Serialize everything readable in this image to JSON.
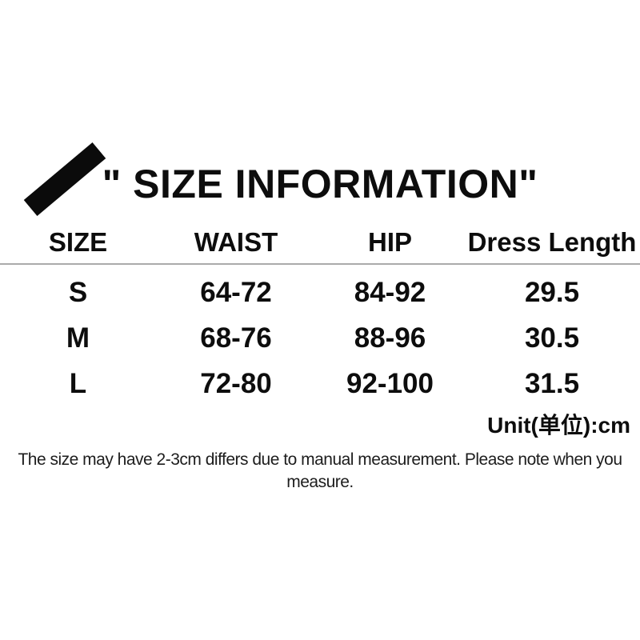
{
  "chart_data": {
    "type": "table",
    "title": "\" SIZE INFORMATION\"",
    "columns": [
      "SIZE",
      "WAIST",
      "HIP",
      "Dress Length"
    ],
    "rows": [
      [
        "S",
        "64-72",
        "84-92",
        "29.5"
      ],
      [
        "M",
        "68-76",
        "88-96",
        "30.5"
      ],
      [
        "L",
        "72-80",
        "92-100",
        "31.5"
      ]
    ],
    "unit_label": "Unit(单位):cm",
    "note": "The size may have 2-3cm differs due to manual measurement. Please note when you measure."
  },
  "icons": {
    "brush_stroke": "black-diagonal-brush-stroke"
  },
  "colors": {
    "background": "#ffffff",
    "text": "#0d0d0d",
    "brush": "#0b0b0b",
    "divider": "#ababab",
    "note_text": "#1d1d1d"
  }
}
